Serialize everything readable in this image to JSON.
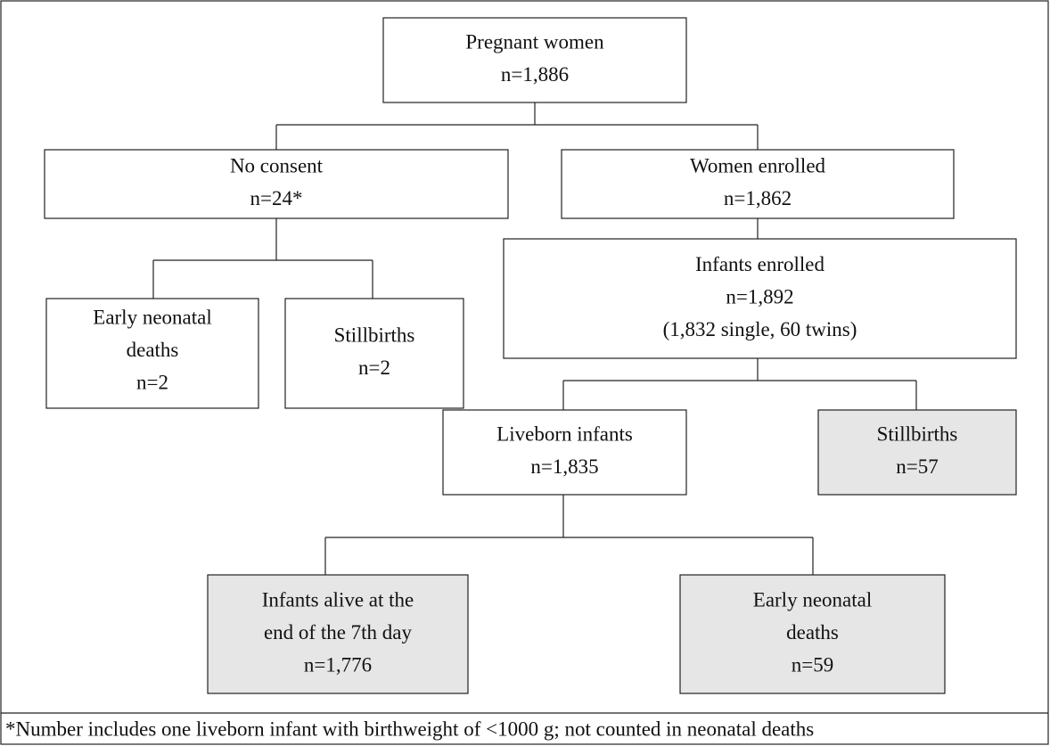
{
  "nodes": [
    {
      "lines": [
        "Pregnant women",
        "n=1,886"
      ]
    },
    {
      "lines": [
        "No consent",
        "n=24*"
      ]
    },
    {
      "lines": [
        "Women enrolled",
        "n=1,862"
      ]
    },
    {
      "lines": [
        "Infants enrolled",
        "n=1,892",
        "(1,832 single, 60 twins)"
      ]
    },
    {
      "lines": [
        "Early neonatal",
        "deaths",
        "n=2"
      ]
    },
    {
      "lines": [
        "Stillbirths",
        "n=2"
      ]
    },
    {
      "lines": [
        "Liveborn infants",
        "n=1,835"
      ]
    },
    {
      "lines": [
        "Stillbirths",
        "n=57"
      ]
    },
    {
      "lines": [
        "Infants alive at the",
        "end of the 7th day",
        "n=1,776"
      ]
    },
    {
      "lines": [
        "Early neonatal",
        "deaths",
        "n=59"
      ]
    }
  ],
  "footnote": "*Number includes one liveborn infant with birthweight of <1000 g; not counted in neonatal deaths"
}
